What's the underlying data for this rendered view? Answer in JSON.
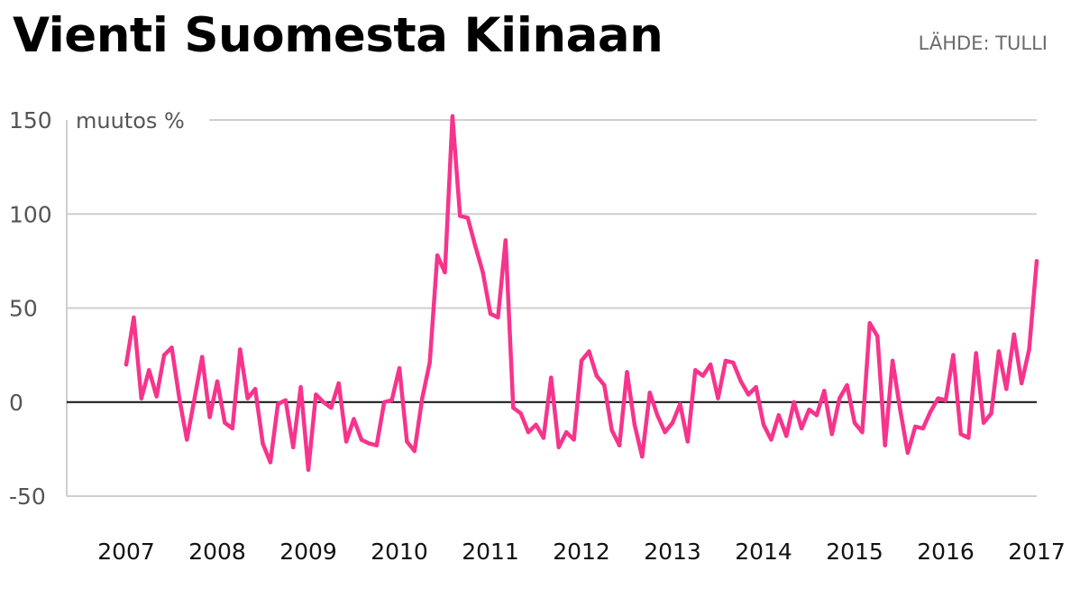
{
  "header": {
    "title": "Vienti Suomesta Kiinaan",
    "source": "LÄHDE: TULLI"
  },
  "chart_data": {
    "type": "line",
    "ylabel": "muutos %",
    "ylim": [
      -50,
      150
    ],
    "yticks": [
      "150",
      "100",
      "50",
      "0",
      "-50"
    ],
    "ytick_values": [
      150,
      100,
      50,
      0,
      -50
    ],
    "xticks": [
      "2007",
      "2008",
      "2009",
      "2010",
      "2011",
      "2012",
      "2013",
      "2014",
      "2015",
      "2016",
      "2017"
    ],
    "xlim": [
      2007,
      2017
    ],
    "zero_line": true,
    "grid": "horizontal",
    "color": "#f7348c",
    "x": [
      2007.0,
      2007.0833,
      2007.1667,
      2007.25,
      2007.3333,
      2007.4167,
      2007.5,
      2007.5833,
      2007.6667,
      2007.75,
      2007.8333,
      2007.9167,
      2008.0,
      2008.0833,
      2008.1667,
      2008.25,
      2008.3333,
      2008.4167,
      2008.5,
      2008.5833,
      2008.6667,
      2008.75,
      2008.8333,
      2008.9167,
      2009.0,
      2009.0833,
      2009.1667,
      2009.25,
      2009.3333,
      2009.4167,
      2009.5,
      2009.5833,
      2009.6667,
      2009.75,
      2009.8333,
      2009.9167,
      2010.0,
      2010.0833,
      2010.1667,
      2010.25,
      2010.3333,
      2010.4167,
      2010.5,
      2010.5833,
      2010.6667,
      2010.75,
      2010.8333,
      2010.9167,
      2011.0,
      2011.0833,
      2011.1667,
      2011.25,
      2011.3333,
      2011.4167,
      2011.5,
      2011.5833,
      2011.6667,
      2011.75,
      2011.8333,
      2011.9167,
      2012.0,
      2012.0833,
      2012.1667,
      2012.25,
      2012.3333,
      2012.4167,
      2012.5,
      2012.5833,
      2012.6667,
      2012.75,
      2012.8333,
      2012.9167,
      2013.0,
      2013.0833,
      2013.1667,
      2013.25,
      2013.3333,
      2013.4167,
      2013.5,
      2013.5833,
      2013.6667,
      2013.75,
      2013.8333,
      2013.9167,
      2014.0,
      2014.0833,
      2014.1667,
      2014.25,
      2014.3333,
      2014.4167,
      2014.5,
      2014.5833,
      2014.6667,
      2014.75,
      2014.8333,
      2014.9167,
      2015.0,
      2015.0833,
      2015.1667,
      2015.25,
      2015.3333,
      2015.4167,
      2015.5,
      2015.5833,
      2015.6667,
      2015.75,
      2015.8333,
      2015.9167,
      2016.0,
      2016.0833,
      2016.1667,
      2016.25,
      2016.3333,
      2016.4167,
      2016.5,
      2016.5833,
      2016.6667,
      2016.75,
      2016.8333,
      2016.9167,
      2017.0
    ],
    "y": [
      20,
      45,
      2,
      17,
      3,
      25,
      29,
      2,
      -20,
      2,
      24,
      -8,
      11,
      -11,
      -14,
      28,
      2,
      7,
      -22,
      -32,
      -1,
      1,
      -24,
      8,
      -36,
      4,
      0,
      -3,
      10,
      -21,
      -9,
      -20,
      -22,
      -23,
      0,
      1,
      18,
      -21,
      -26,
      2,
      21,
      78,
      69,
      152,
      99,
      98,
      83,
      69,
      47,
      45,
      86,
      -3,
      -6,
      -16,
      -12,
      -19,
      13,
      -24,
      -16,
      -20,
      22,
      27,
      14,
      9,
      -15,
      -23,
      16,
      -12,
      -29,
      5,
      -7,
      -16,
      -11,
      -1,
      -21,
      17,
      14,
      20,
      2,
      22,
      21,
      11,
      4,
      8,
      -12,
      -20,
      -7,
      -18,
      0,
      -14,
      -4,
      -7,
      6,
      -17,
      2,
      9,
      -11,
      -16,
      42,
      35,
      -23,
      22,
      -4,
      -27,
      -13,
      -14,
      -5,
      2,
      1,
      25,
      -17,
      -19,
      26,
      -11,
      -6,
      27,
      7,
      36,
      10,
      28,
      75
    ]
  }
}
